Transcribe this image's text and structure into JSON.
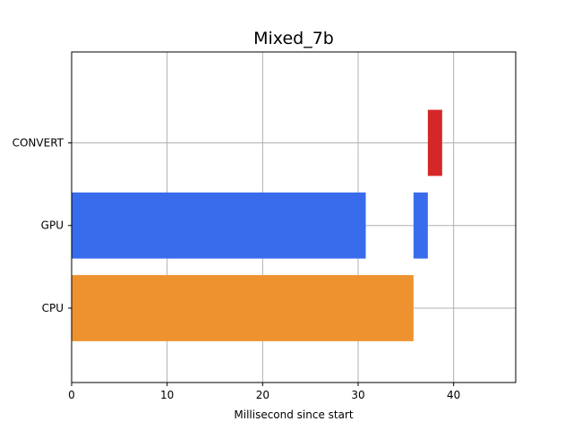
{
  "chart_data": {
    "type": "bar",
    "orientation": "horizontal",
    "title": "Mixed_7b",
    "xlabel": "Millisecond since start",
    "ylabel": "",
    "xlim": [
      0,
      46.5
    ],
    "x_ticks": [
      0,
      10,
      20,
      30,
      40
    ],
    "categories": [
      "CPU",
      "GPU",
      "CONVERT"
    ],
    "grid": true,
    "bars": [
      {
        "category": "CPU",
        "start": 0,
        "end": 35.8,
        "color": "#ee9230"
      },
      {
        "category": "GPU",
        "start": 0,
        "end": 30.8,
        "color": "#396ced"
      },
      {
        "category": "GPU",
        "start": 35.8,
        "end": 37.3,
        "color": "#396ced"
      },
      {
        "category": "CONVERT",
        "start": 37.3,
        "end": 38.8,
        "color": "#d62728"
      }
    ]
  }
}
